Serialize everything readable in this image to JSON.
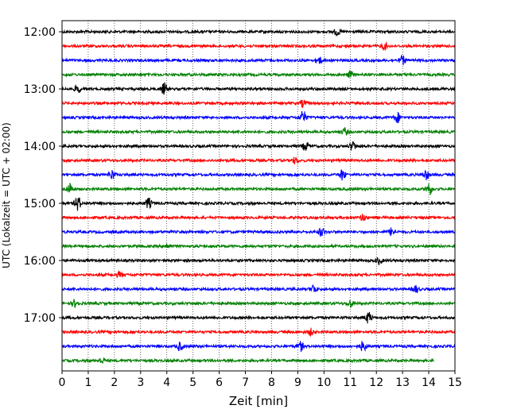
{
  "chart_data": {
    "type": "line",
    "title": "",
    "xlabel": "Zeit  [min]",
    "ylabel": "UTC (Lokalzeit = UTC + 02:00)",
    "xlim": [
      0,
      15
    ],
    "x_ticks": [
      "0",
      "1",
      "2",
      "3",
      "4",
      "5",
      "6",
      "7",
      "8",
      "9",
      "10",
      "11",
      "12",
      "13",
      "14",
      "15"
    ],
    "y_tick_labels": [
      "12:00",
      "13:00",
      "14:00",
      "15:00",
      "16:00",
      "17:00"
    ],
    "grid": "vertical-dotted",
    "trace_interval_min": 15,
    "trace_colors": [
      "#000000",
      "#ff0000",
      "#0000ff",
      "#008000"
    ],
    "traces": [
      {
        "start": "12:00",
        "end_min": 15
      },
      {
        "start": "12:15",
        "end_min": 15
      },
      {
        "start": "12:30",
        "end_min": 15
      },
      {
        "start": "12:45",
        "end_min": 15
      },
      {
        "start": "13:00",
        "end_min": 15
      },
      {
        "start": "13:15",
        "end_min": 15
      },
      {
        "start": "13:30",
        "end_min": 15
      },
      {
        "start": "13:45",
        "end_min": 15
      },
      {
        "start": "14:00",
        "end_min": 15
      },
      {
        "start": "14:15",
        "end_min": 15
      },
      {
        "start": "14:30",
        "end_min": 15
      },
      {
        "start": "14:45",
        "end_min": 15
      },
      {
        "start": "15:00",
        "end_min": 15
      },
      {
        "start": "15:15",
        "end_min": 15
      },
      {
        "start": "15:30",
        "end_min": 15
      },
      {
        "start": "15:45",
        "end_min": 15
      },
      {
        "start": "16:00",
        "end_min": 15
      },
      {
        "start": "16:15",
        "end_min": 15
      },
      {
        "start": "16:30",
        "end_min": 15
      },
      {
        "start": "16:45",
        "end_min": 15
      },
      {
        "start": "17:00",
        "end_min": 15
      },
      {
        "start": "17:15",
        "end_min": 15
      },
      {
        "start": "17:30",
        "end_min": 15
      },
      {
        "start": "17:45",
        "end_min": 14.2
      }
    ],
    "events": [
      {
        "trace": 0,
        "at": 10.5,
        "amp": 1.3
      },
      {
        "trace": 1,
        "at": 12.3,
        "amp": 1.3
      },
      {
        "trace": 2,
        "at": 9.8,
        "amp": 1.4
      },
      {
        "trace": 2,
        "at": 13.0,
        "amp": 1.6
      },
      {
        "trace": 3,
        "at": 11.0,
        "amp": 1.2
      },
      {
        "trace": 4,
        "at": 0.6,
        "amp": 1.5
      },
      {
        "trace": 4,
        "at": 3.9,
        "amp": 2.2
      },
      {
        "trace": 5,
        "at": 9.2,
        "amp": 1.4
      },
      {
        "trace": 6,
        "at": 9.2,
        "amp": 2.6
      },
      {
        "trace": 6,
        "at": 12.8,
        "amp": 2.0
      },
      {
        "trace": 7,
        "at": 10.8,
        "amp": 1.3
      },
      {
        "trace": 8,
        "at": 9.3,
        "amp": 1.8
      },
      {
        "trace": 8,
        "at": 11.1,
        "amp": 1.8
      },
      {
        "trace": 9,
        "at": 8.9,
        "amp": 1.2
      },
      {
        "trace": 10,
        "at": 1.9,
        "amp": 1.9
      },
      {
        "trace": 10,
        "at": 10.7,
        "amp": 2.1
      },
      {
        "trace": 10,
        "at": 13.9,
        "amp": 1.8
      },
      {
        "trace": 11,
        "at": 0.3,
        "amp": 2.2
      },
      {
        "trace": 11,
        "at": 14.0,
        "amp": 2.6
      },
      {
        "trace": 12,
        "at": 0.6,
        "amp": 2.8
      },
      {
        "trace": 12,
        "at": 3.3,
        "amp": 2.0
      },
      {
        "trace": 13,
        "at": 11.5,
        "amp": 1.2
      },
      {
        "trace": 14,
        "at": 9.9,
        "amp": 1.6
      },
      {
        "trace": 14,
        "at": 12.6,
        "amp": 1.7
      },
      {
        "trace": 15,
        "at": 4.0,
        "amp": 1.0
      },
      {
        "trace": 16,
        "at": 12.1,
        "amp": 1.3
      },
      {
        "trace": 17,
        "at": 2.2,
        "amp": 1.0
      },
      {
        "trace": 18,
        "at": 9.6,
        "amp": 1.6
      },
      {
        "trace": 18,
        "at": 13.5,
        "amp": 1.4
      },
      {
        "trace": 19,
        "at": 0.5,
        "amp": 1.3
      },
      {
        "trace": 19,
        "at": 11.0,
        "amp": 1.3
      },
      {
        "trace": 20,
        "at": 11.7,
        "amp": 2.2
      },
      {
        "trace": 21,
        "at": 9.5,
        "amp": 1.2
      },
      {
        "trace": 22,
        "at": 4.5,
        "amp": 1.6
      },
      {
        "trace": 22,
        "at": 9.1,
        "amp": 1.8
      },
      {
        "trace": 22,
        "at": 11.5,
        "amp": 2.0
      },
      {
        "trace": 23,
        "at": 1.5,
        "amp": 1.0
      }
    ]
  }
}
